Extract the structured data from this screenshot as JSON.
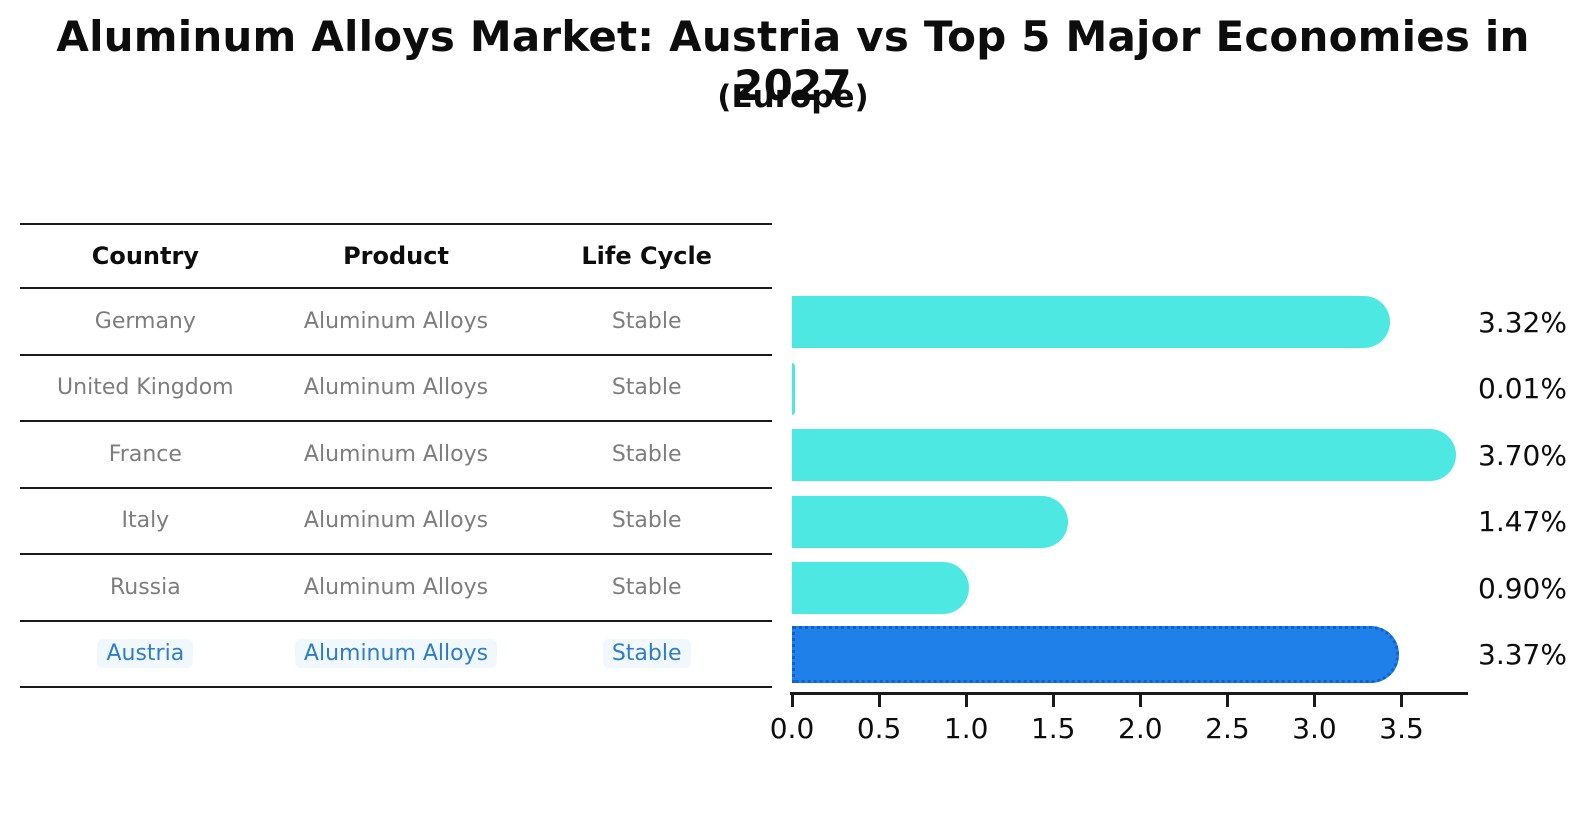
{
  "header": {
    "title": "Aluminum Alloys Market: Austria vs Top 5 Major Economies in 2027",
    "subtitle": "(Europe)"
  },
  "table": {
    "headers": [
      "Country",
      "Product",
      "Life Cycle"
    ],
    "rows": [
      {
        "country": "Germany",
        "product": "Aluminum Alloys",
        "life_cycle": "Stable",
        "highlight": false
      },
      {
        "country": "United Kingdom",
        "product": "Aluminum Alloys",
        "life_cycle": "Stable",
        "highlight": false
      },
      {
        "country": "France",
        "product": "Aluminum Alloys",
        "life_cycle": "Stable",
        "highlight": false
      },
      {
        "country": "Italy",
        "product": "Aluminum Alloys",
        "life_cycle": "Stable",
        "highlight": false
      },
      {
        "country": "Russia",
        "product": "Aluminum Alloys",
        "life_cycle": "Stable",
        "highlight": false
      },
      {
        "country": "Austria",
        "product": "Aluminum Alloys",
        "life_cycle": "Stable",
        "highlight": true
      }
    ]
  },
  "chart_data": {
    "type": "bar",
    "orientation": "horizontal",
    "title": "Aluminum Alloys Market: Austria vs Top 5 Major Economies in 2027",
    "subtitle": "(Europe)",
    "categories": [
      "Germany",
      "United Kingdom",
      "France",
      "Italy",
      "Russia",
      "Austria"
    ],
    "values": [
      3.32,
      0.01,
      3.7,
      1.47,
      0.9,
      3.37
    ],
    "value_labels": [
      "3.32%",
      "0.01%",
      "3.70%",
      "1.47%",
      "0.90%",
      "3.37%"
    ],
    "xlabel": "",
    "ylabel": "",
    "xlim": [
      0,
      3.87
    ],
    "xticks": [
      "0.0",
      "0.5",
      "1.0",
      "1.5",
      "2.0",
      "2.5",
      "3.0",
      "3.5"
    ],
    "grid": false,
    "legend": "none",
    "bar_color": "#4de8e2",
    "highlight_color": "#1f80e9",
    "highlight_edge_color": "#0f62cc",
    "highlight_index": 5
  }
}
